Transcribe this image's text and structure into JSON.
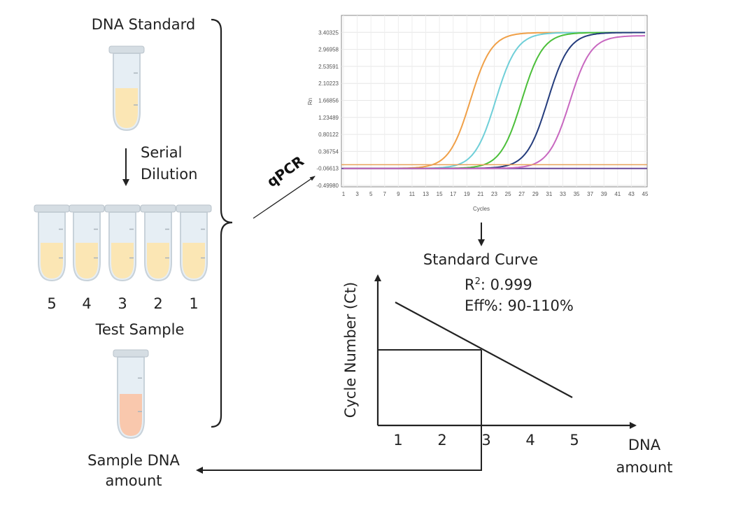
{
  "left": {
    "dna_standard": "DNA Standard",
    "serial": "Serial",
    "dilution": "Dilution",
    "dilution_numbers": [
      "5",
      "4",
      "3",
      "2",
      "1"
    ],
    "test_sample": "Test Sample",
    "sample_dna_line1": "Sample DNA",
    "sample_dna_line2": "amount",
    "standard_liquid_color": "#fbe6b4",
    "sample_liquid_color": "#f9c8ad"
  },
  "qpcr_label": "qPCR",
  "chart_data": {
    "type": "line",
    "xlabel": "Cycles",
    "ylabel": "Rn",
    "xlim": [
      1,
      45
    ],
    "ylim": [
      -0.4998,
      3.83692
    ],
    "x_ticks": [
      "1",
      "3",
      "5",
      "7",
      "9",
      "11",
      "13",
      "15",
      "17",
      "19",
      "21",
      "23",
      "25",
      "27",
      "29",
      "31",
      "33",
      "35",
      "37",
      "39",
      "41",
      "43",
      "45"
    ],
    "y_ticks": [
      "3.40325",
      "2.96958",
      "2.53591",
      "2.10223",
      "1.66856",
      "1.23489",
      "0.80122",
      "0.36754",
      "-0.06613",
      "-0.49980"
    ],
    "y_tick_values": [
      3.40325,
      2.96958,
      2.53591,
      2.10223,
      1.66856,
      1.23489,
      0.80122,
      0.36754,
      -0.06613,
      -0.4998
    ],
    "grid": true,
    "baseline": -0.066,
    "threshold": 0.03,
    "threshold_color": "#e8a25a",
    "series": [
      {
        "color": "#f0a048",
        "midpoint_cycle": 19.5,
        "plateau": 3.4
      },
      {
        "color": "#6fcfd8",
        "midpoint_cycle": 23.2,
        "plateau": 3.4
      },
      {
        "color": "#4cbf3a",
        "midpoint_cycle": 27.0,
        "plateau": 3.4
      },
      {
        "color": "#243c7c",
        "midpoint_cycle": 30.8,
        "plateau": 3.4
      },
      {
        "color": "#c868c0",
        "midpoint_cycle": 34.0,
        "plateau": 3.32
      }
    ]
  },
  "standard_curve": {
    "title": "Standard Curve",
    "r2_prefix": "R",
    "r2_sup": "2",
    "r2_value": ": 0.999",
    "efficiency": "Eff%: 90-110%",
    "ylabel": "Cycle Number (Ct)",
    "xlabel_line1": "DNA",
    "xlabel_line2": "amount",
    "x_ticks": [
      "1",
      "2",
      "3",
      "4",
      "5"
    ]
  }
}
